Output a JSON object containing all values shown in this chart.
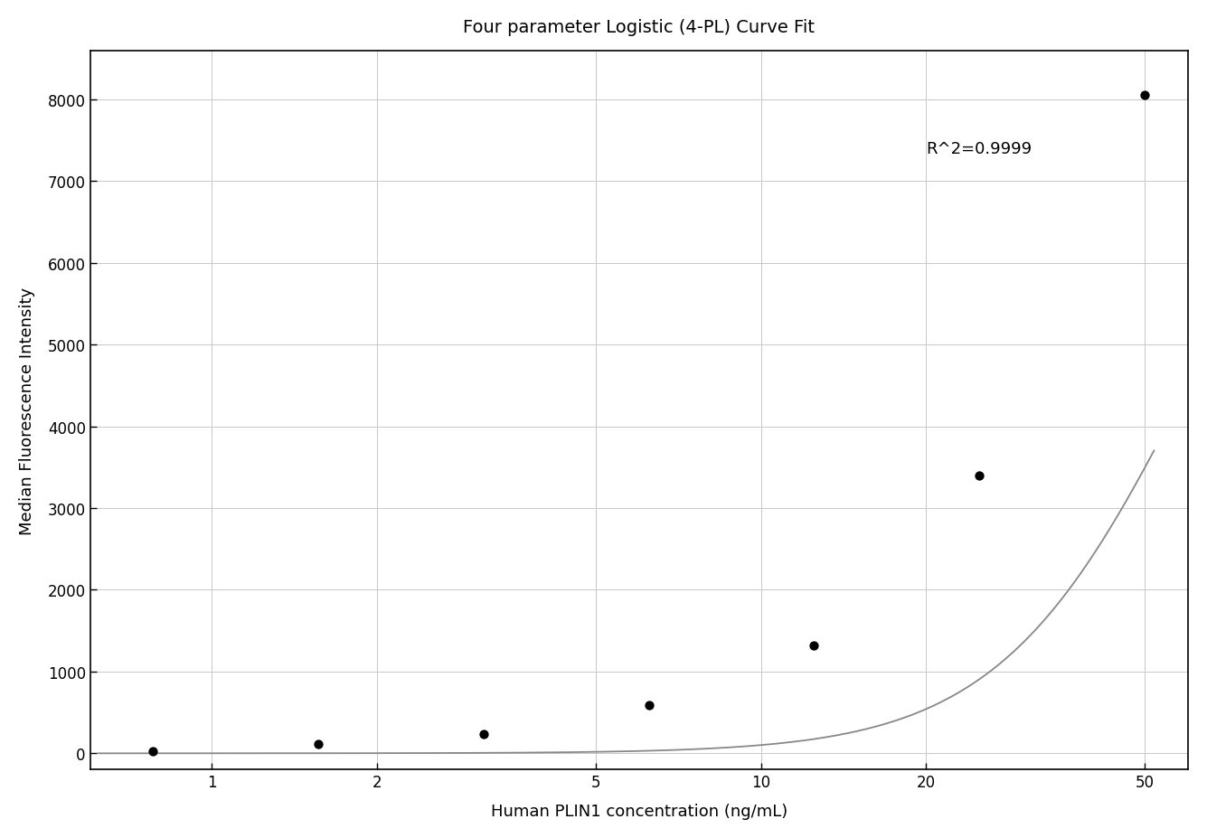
{
  "title": "Four parameter Logistic (4-PL) Curve Fit",
  "xlabel": "Human PLIN1 concentration (ng/mL)",
  "ylabel": "Median Fluorescence Intensity",
  "r2_label": "R^2=0.9999",
  "data_points_x": [
    0.781,
    1.563,
    3.125,
    6.25,
    12.5,
    25,
    50
  ],
  "data_points_y": [
    30,
    110,
    240,
    590,
    1320,
    3400,
    8050
  ],
  "xlim_log": [
    0.6,
    60
  ],
  "ylim": [
    -200,
    8600
  ],
  "yticks": [
    0,
    1000,
    2000,
    3000,
    4000,
    5000,
    6000,
    7000,
    8000
  ],
  "xticks": [
    1,
    2,
    5,
    10,
    20,
    50
  ],
  "xtick_labels": [
    "1",
    "2",
    "5",
    "10",
    "20",
    "50"
  ],
  "curve_color": "#888888",
  "point_color": "#000000",
  "background_color": "#ffffff",
  "grid_color": "#c8c8c8",
  "title_fontsize": 14,
  "label_fontsize": 13,
  "tick_fontsize": 12,
  "annotation_fontsize": 13,
  "r2_x_data": 20,
  "r2_y_data": 7500,
  "point_size": 55
}
